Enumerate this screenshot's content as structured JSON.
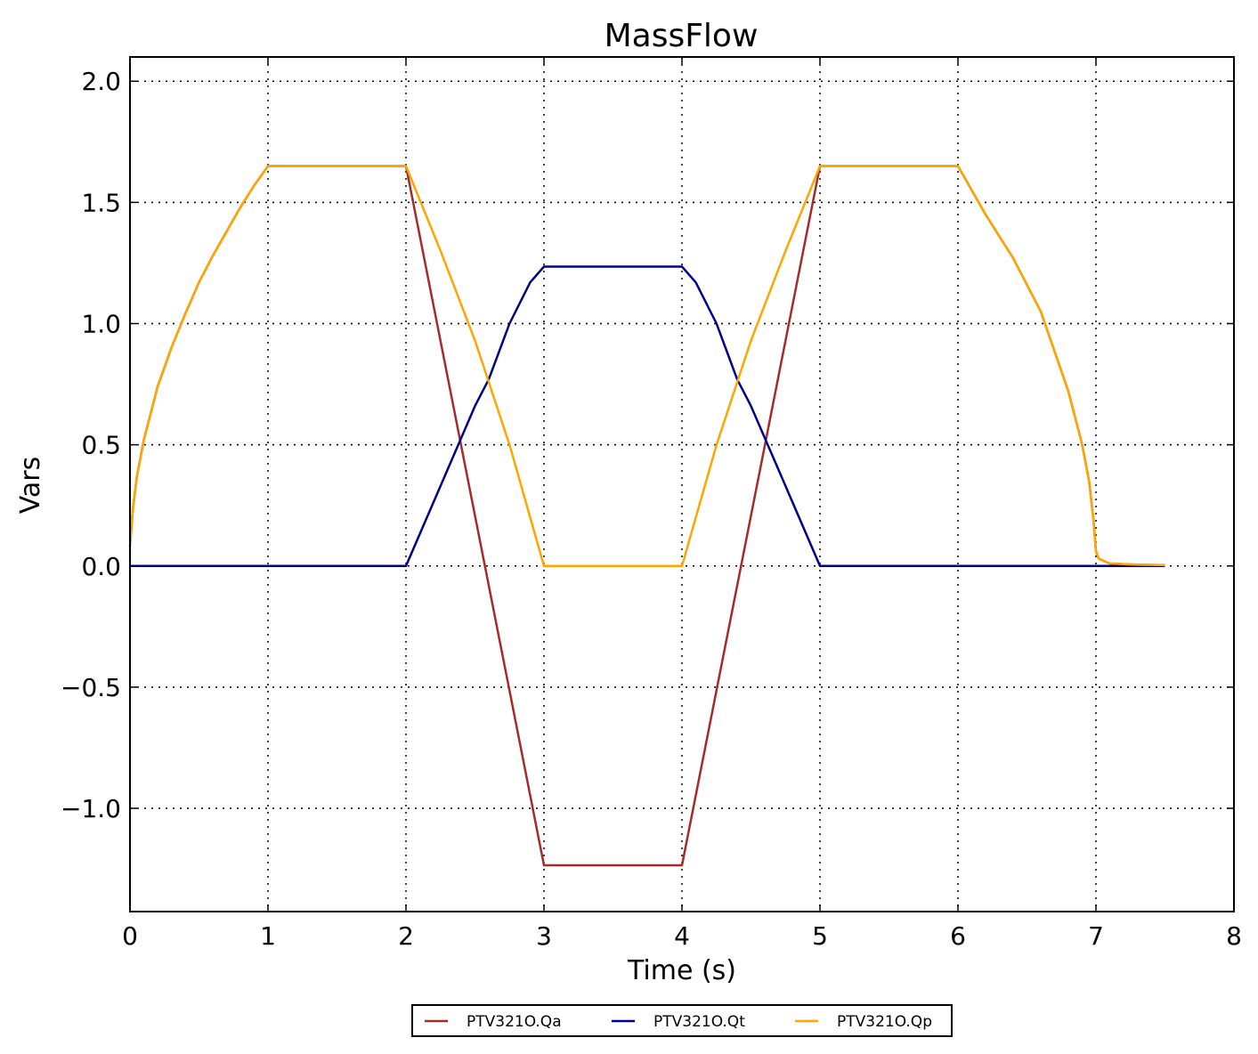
{
  "chart_data": {
    "type": "line",
    "title": "MassFlow",
    "xlabel": "Time (s)",
    "ylabel": "Vars",
    "xlim": [
      0,
      8
    ],
    "ylim": [
      -1.426,
      2.1
    ],
    "xticks": [
      0,
      1,
      2,
      3,
      4,
      5,
      6,
      7,
      8
    ],
    "xtick_labels": [
      "0",
      "1",
      "2",
      "3",
      "4",
      "5",
      "6",
      "7",
      "8"
    ],
    "yticks": [
      -1.0,
      -0.5,
      0.0,
      0.5,
      1.0,
      1.5,
      2.0
    ],
    "ytick_labels": [
      "−1.0",
      "−0.5",
      "0.0",
      "0.5",
      "1.0",
      "1.5",
      "2.0"
    ],
    "grid": true,
    "legend_position": "bottom-center-outside",
    "series": [
      {
        "name": "PTV321O.Qa",
        "color": "#a52a2a",
        "x": [
          0,
          0.02,
          0.05,
          0.1,
          0.2,
          0.3,
          0.4,
          0.5,
          0.6,
          0.7,
          0.8,
          0.9,
          1.0,
          2.0,
          3.0,
          4.0,
          5.0,
          6.0,
          6.2,
          6.4,
          6.6,
          6.8,
          6.9,
          6.95,
          6.98,
          7.0,
          7.02,
          7.1,
          7.3,
          7.5
        ],
        "y": [
          0.08,
          0.23,
          0.37,
          0.52,
          0.74,
          0.9,
          1.04,
          1.17,
          1.28,
          1.38,
          1.48,
          1.57,
          1.65,
          1.65,
          -1.235,
          -1.235,
          1.65,
          1.65,
          1.45,
          1.27,
          1.05,
          0.72,
          0.5,
          0.35,
          0.2,
          0.06,
          0.03,
          0.01,
          0.005,
          0.003
        ]
      },
      {
        "name": "PTV321O.Qt",
        "color": "#00008b",
        "x": [
          0,
          2.0,
          2.25,
          2.5,
          2.6,
          2.75,
          2.9,
          3.0,
          4.0,
          4.1,
          4.25,
          4.4,
          4.5,
          4.75,
          5.0,
          7.5
        ],
        "y": [
          0,
          0,
          0.33,
          0.66,
          0.77,
          1.0,
          1.17,
          1.235,
          1.235,
          1.17,
          1.0,
          0.77,
          0.66,
          0.33,
          0,
          0
        ]
      },
      {
        "name": "PTV321O.Qp",
        "color": "#ffa500",
        "x": [
          0,
          0.02,
          0.05,
          0.1,
          0.2,
          0.3,
          0.4,
          0.5,
          0.6,
          0.7,
          0.8,
          0.9,
          1.0,
          2.0,
          2.25,
          2.5,
          2.75,
          3.0,
          4.0,
          4.25,
          4.5,
          4.75,
          5.0,
          6.0,
          6.2,
          6.4,
          6.6,
          6.8,
          6.9,
          6.95,
          6.98,
          7.0,
          7.02,
          7.1,
          7.3,
          7.5
        ],
        "y": [
          0.08,
          0.23,
          0.37,
          0.52,
          0.74,
          0.9,
          1.04,
          1.17,
          1.28,
          1.38,
          1.48,
          1.57,
          1.65,
          1.65,
          1.3,
          0.93,
          0.5,
          0,
          0,
          0.5,
          0.93,
          1.3,
          1.65,
          1.65,
          1.45,
          1.27,
          1.05,
          0.72,
          0.5,
          0.35,
          0.2,
          0.06,
          0.03,
          0.01,
          0.005,
          0.003
        ]
      }
    ]
  }
}
